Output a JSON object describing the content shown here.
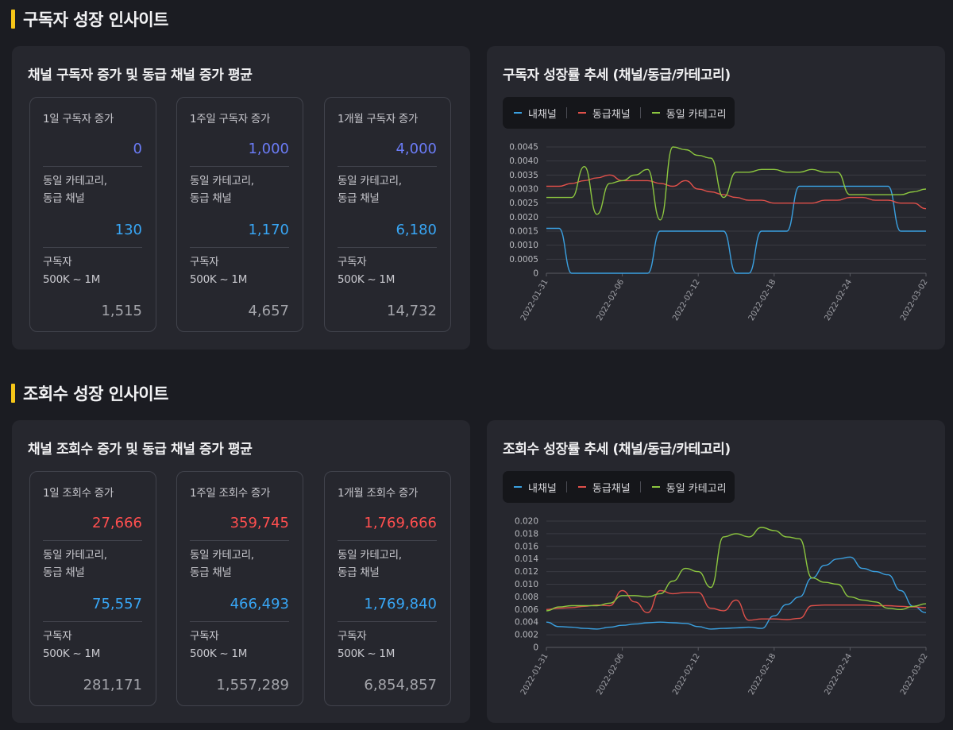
{
  "sections": [
    {
      "title": "구독자 성장 인사이트",
      "stats_title": "채널 구독자 증가 및 동급 채널 증가 평균",
      "chart_title": "구독자 성장률 추세 (채널/동급/카테고리)",
      "stats": [
        {
          "label": "1일 구독자 증가",
          "value": "0",
          "peer_label1": "동일 카테고리,",
          "peer_label2": "동급 채널",
          "peer_value": "130",
          "sub_label1": "구독자",
          "sub_label2": "500K ~ 1M",
          "sub_value": "1,515"
        },
        {
          "label": "1주일 구독자 증가",
          "value": "1,000",
          "peer_label1": "동일 카테고리,",
          "peer_label2": "동급 채널",
          "peer_value": "1,170",
          "sub_label1": "구독자",
          "sub_label2": "500K ~ 1M",
          "sub_value": "4,657"
        },
        {
          "label": "1개월 구독자 증가",
          "value": "4,000",
          "peer_label1": "동일 카테고리,",
          "peer_label2": "동급 채널",
          "peer_value": "6,180",
          "sub_label1": "구독자",
          "sub_label2": "500K ~ 1M",
          "sub_value": "14,732"
        }
      ],
      "value_color": "#6b7cf7"
    },
    {
      "title": "조회수 성장 인사이트",
      "stats_title": "채널 조회수 증가 및 동급 채널 증가 평균",
      "chart_title": "조회수 성장률 추세 (채널/동급/카테고리)",
      "stats": [
        {
          "label": "1일 조회수 증가",
          "value": "27,666",
          "peer_label1": "동일 카테고리,",
          "peer_label2": "동급 채널",
          "peer_value": "75,557",
          "sub_label1": "구독자",
          "sub_label2": "500K ~ 1M",
          "sub_value": "281,171"
        },
        {
          "label": "1주일 조회수 증가",
          "value": "359,745",
          "peer_label1": "동일 카테고리,",
          "peer_label2": "동급 채널",
          "peer_value": "466,493",
          "sub_label1": "구독자",
          "sub_label2": "500K ~ 1M",
          "sub_value": "1,557,289"
        },
        {
          "label": "1개월 조회수 증가",
          "value": "1,769,666",
          "peer_label1": "동일 카테고리,",
          "peer_label2": "동급 채널",
          "peer_value": "1,769,840",
          "sub_label1": "구독자",
          "sub_label2": "500K ~ 1M",
          "sub_value": "6,854,857"
        }
      ],
      "value_color": "#ff4f4f"
    }
  ],
  "legend": [
    {
      "name": "내채널",
      "color": "#3aa0e0"
    },
    {
      "name": "동급채널",
      "color": "#e0504a"
    },
    {
      "name": "동일 카테고리",
      "color": "#8cc63f"
    }
  ],
  "chart_data": [
    {
      "type": "line",
      "title": "구독자 성장률 추세 (채널/동급/카테고리)",
      "x": [
        "2022-01-31",
        "2022-02-01",
        "2022-02-02",
        "2022-02-03",
        "2022-02-04",
        "2022-02-05",
        "2022-02-06",
        "2022-02-07",
        "2022-02-08",
        "2022-02-09",
        "2022-02-10",
        "2022-02-11",
        "2022-02-12",
        "2022-02-13",
        "2022-02-14",
        "2022-02-15",
        "2022-02-16",
        "2022-02-17",
        "2022-02-18",
        "2022-02-19",
        "2022-02-20",
        "2022-02-21",
        "2022-02-22",
        "2022-02-23",
        "2022-02-24",
        "2022-02-25",
        "2022-02-26",
        "2022-02-27",
        "2022-02-28",
        "2022-03-01",
        "2022-03-02"
      ],
      "x_ticks": [
        "2022-01-31",
        "2022-02-06",
        "2022-02-12",
        "2022-02-18",
        "2022-02-24",
        "2022-03-02"
      ],
      "y_ticks": [
        "0",
        "0.0005",
        "0.0010",
        "0.0015",
        "0.0020",
        "0.0025",
        "0.0030",
        "0.0035",
        "0.0040",
        "0.0045"
      ],
      "ylim": [
        0,
        0.0045
      ],
      "grid": true,
      "legend_position": "top-left",
      "series": [
        {
          "name": "내채널",
          "color": "#3aa0e0",
          "values": [
            0.0016,
            0.0016,
            0,
            0,
            0,
            0,
            0,
            0,
            0,
            0.0015,
            0.0015,
            0.0015,
            0.0015,
            0.0015,
            0.0015,
            0,
            0,
            0.0015,
            0.0015,
            0.0015,
            0.0031,
            0.0031,
            0.0031,
            0.0031,
            0.0031,
            0.0031,
            0.0031,
            0.0031,
            0.0015,
            0.0015,
            0.0015
          ]
        },
        {
          "name": "동급채널",
          "color": "#e0504a",
          "values": [
            0.0031,
            0.0031,
            0.0032,
            0.0033,
            0.0034,
            0.0035,
            0.0033,
            0.0033,
            0.0033,
            0.0032,
            0.0031,
            0.0033,
            0.003,
            0.0029,
            0.0028,
            0.0027,
            0.0026,
            0.0026,
            0.0025,
            0.0025,
            0.0025,
            0.0025,
            0.0026,
            0.0026,
            0.0027,
            0.0027,
            0.0026,
            0.0026,
            0.0025,
            0.0025,
            0.0023
          ]
        },
        {
          "name": "동일 카테고리",
          "color": "#8cc63f",
          "values": [
            0.0027,
            0.0027,
            0.0027,
            0.0038,
            0.0021,
            0.0032,
            0.0033,
            0.0035,
            0.0037,
            0.0019,
            0.0045,
            0.0044,
            0.0042,
            0.0041,
            0.0027,
            0.0036,
            0.0036,
            0.0037,
            0.0037,
            0.0036,
            0.0036,
            0.0037,
            0.0036,
            0.0036,
            0.0028,
            0.0028,
            0.0028,
            0.0028,
            0.0028,
            0.0029,
            0.003
          ]
        }
      ]
    },
    {
      "type": "line",
      "title": "조회수 성장률 추세 (채널/동급/카테고리)",
      "x": [
        "2022-01-31",
        "2022-02-01",
        "2022-02-02",
        "2022-02-03",
        "2022-02-04",
        "2022-02-05",
        "2022-02-06",
        "2022-02-07",
        "2022-02-08",
        "2022-02-09",
        "2022-02-10",
        "2022-02-11",
        "2022-02-12",
        "2022-02-13",
        "2022-02-14",
        "2022-02-15",
        "2022-02-16",
        "2022-02-17",
        "2022-02-18",
        "2022-02-19",
        "2022-02-20",
        "2022-02-21",
        "2022-02-22",
        "2022-02-23",
        "2022-02-24",
        "2022-02-25",
        "2022-02-26",
        "2022-02-27",
        "2022-02-28",
        "2022-03-01",
        "2022-03-02"
      ],
      "x_ticks": [
        "2022-01-31",
        "2022-02-06",
        "2022-02-12",
        "2022-02-18",
        "2022-02-24",
        "2022-03-02"
      ],
      "y_ticks": [
        "0",
        "0.002",
        "0.004",
        "0.006",
        "0.008",
        "0.010",
        "0.012",
        "0.014",
        "0.016",
        "0.018",
        "0.020"
      ],
      "ylim": [
        0,
        0.02
      ],
      "grid": true,
      "legend_position": "top-left",
      "series": [
        {
          "name": "내채널",
          "color": "#3aa0e0",
          "values": [
            0.004,
            0.0033,
            0.0032,
            0.003,
            0.0029,
            0.0032,
            0.0035,
            0.0037,
            0.0039,
            0.004,
            0.0039,
            0.0038,
            0.0033,
            0.0029,
            0.003,
            0.0031,
            0.0032,
            0.003,
            0.005,
            0.0068,
            0.008,
            0.011,
            0.013,
            0.014,
            0.0143,
            0.0125,
            0.012,
            0.0115,
            0.009,
            0.0065,
            0.0055
          ]
        },
        {
          "name": "동급채널",
          "color": "#e0504a",
          "values": [
            0.006,
            0.0062,
            0.0063,
            0.0065,
            0.0067,
            0.0066,
            0.009,
            0.0072,
            0.0055,
            0.009,
            0.0085,
            0.0087,
            0.0087,
            0.0062,
            0.0058,
            0.0075,
            0.0043,
            0.0045,
            0.0045,
            0.0044,
            0.0046,
            0.0066,
            0.0067,
            0.0067,
            0.0067,
            0.0067,
            0.0066,
            0.0066,
            0.0065,
            0.0064,
            0.0063
          ]
        },
        {
          "name": "동일 카테고리",
          "color": "#8cc63f",
          "values": [
            0.0058,
            0.0064,
            0.0066,
            0.0066,
            0.0066,
            0.007,
            0.0082,
            0.0082,
            0.008,
            0.0085,
            0.0105,
            0.0125,
            0.012,
            0.0095,
            0.0175,
            0.018,
            0.0175,
            0.019,
            0.0185,
            0.0175,
            0.0172,
            0.011,
            0.0103,
            0.01,
            0.008,
            0.0075,
            0.0072,
            0.0062,
            0.006,
            0.0065,
            0.0069
          ]
        }
      ]
    }
  ]
}
